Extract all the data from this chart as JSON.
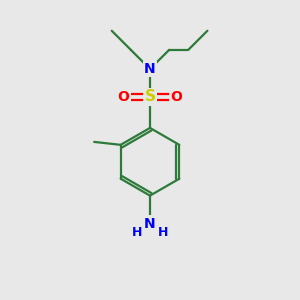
{
  "background_color": "#e8e8e8",
  "atom_colors": {
    "C": "#2d7a3a",
    "N": "#0000ff",
    "S": "#cccc00",
    "O": "#ff0000",
    "H": "#2d7a3a"
  },
  "bond_color": "#2d7a3a",
  "figsize": [
    3.0,
    3.0
  ],
  "dpi": 100
}
